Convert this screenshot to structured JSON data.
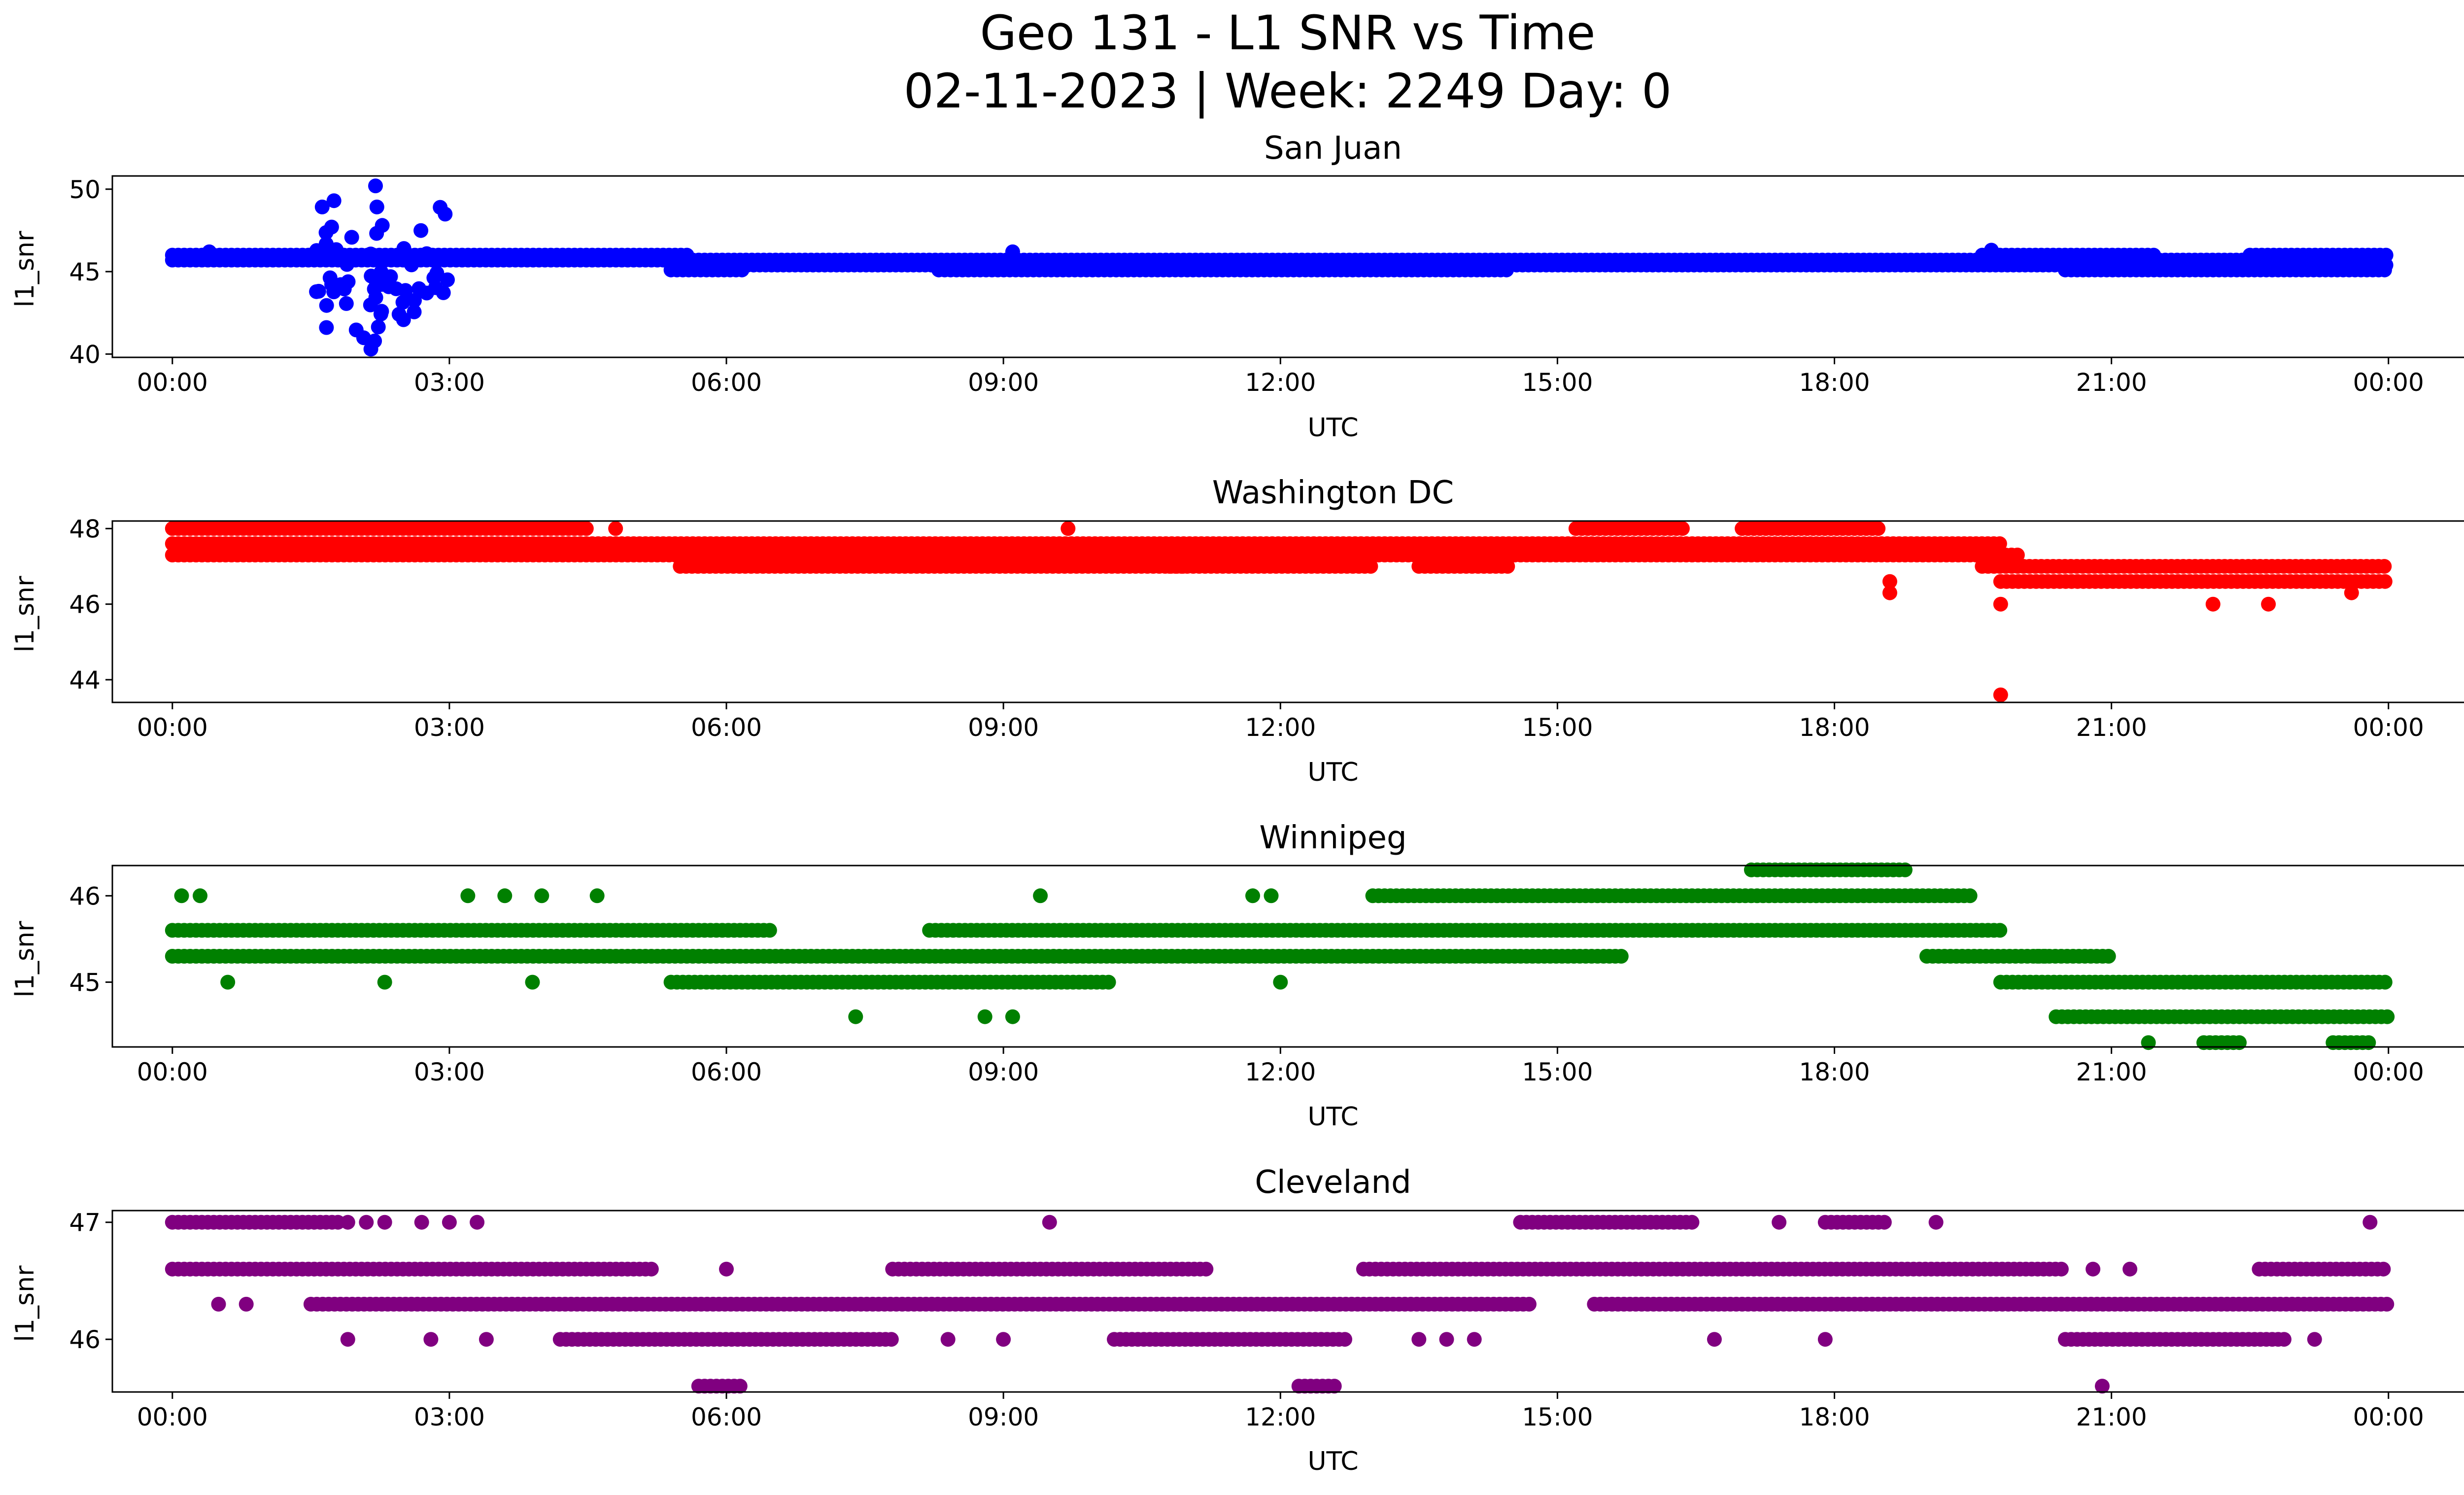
{
  "figure": {
    "title_line1": "Geo 131 - L1 SNR vs Time",
    "title_line2": "02-11-2023 | Week: 2249 Day: 0"
  },
  "chart_data": [
    {
      "type": "scatter",
      "title": "San Juan",
      "xlabel": "UTC",
      "ylabel": "l1_snr",
      "color": "#0000ff",
      "xlim_hours": [
        -0.65,
        25.8
      ],
      "ylim": [
        39.8,
        50.8
      ],
      "yticks": [
        40,
        45,
        50
      ],
      "xtick_labels": [
        "00:00",
        "03:00",
        "06:00",
        "09:00",
        "12:00",
        "15:00",
        "18:00",
        "21:00",
        "00:00"
      ],
      "xtick_hours": [
        0,
        3,
        6,
        9,
        12,
        15,
        18,
        21,
        24
      ],
      "series": [
        {
          "bands": [
            {
              "y": 46.0,
              "ranges": [
                [
                  0,
                  5.6
                ],
                [
                  19.6,
                  21.5
                ],
                [
                  22.5,
                  24
                ]
              ]
            },
            {
              "y": 45.7,
              "ranges": [
                [
                  0,
                  24
                ]
              ]
            },
            {
              "y": 45.4,
              "ranges": [
                [
                  5.4,
                  24
                ]
              ]
            },
            {
              "y": 45.1,
              "ranges": [
                [
                  5.4,
                  6.2
                ],
                [
                  8.3,
                  14.5
                ],
                [
                  20.5,
                  24
                ]
              ]
            }
          ],
          "burst": {
            "x_range": [
              1.55,
              3.0
            ],
            "y_range": [
              40.5,
              50.2
            ],
            "samples": 60
          },
          "extras": [
            [
              2.2,
              50.2
            ],
            [
              1.75,
              49.3
            ],
            [
              2.15,
              40.3
            ],
            [
              2.9,
              48.9
            ],
            [
              0.4,
              46.2
            ],
            [
              9.1,
              46.2
            ],
            [
              19.7,
              46.3
            ]
          ]
        }
      ]
    },
    {
      "type": "scatter",
      "title": "Washington DC",
      "xlabel": "UTC",
      "ylabel": "l1_snr",
      "color": "#ff0000",
      "xlim_hours": [
        -0.65,
        25.8
      ],
      "ylim": [
        43.4,
        48.2
      ],
      "yticks": [
        44,
        46,
        48
      ],
      "xtick_labels": [
        "00:00",
        "03:00",
        "06:00",
        "09:00",
        "12:00",
        "15:00",
        "18:00",
        "21:00",
        "00:00"
      ],
      "xtick_hours": [
        0,
        3,
        6,
        9,
        12,
        15,
        18,
        21,
        24
      ],
      "series": [
        {
          "bands": [
            {
              "y": 48.0,
              "ranges": [
                [
                  0,
                  4.5
                ],
                [
                  15.2,
                  16.4
                ],
                [
                  17.0,
                  18.5
                ]
              ]
            },
            {
              "y": 47.6,
              "ranges": [
                [
                  0,
                  19.8
                ]
              ]
            },
            {
              "y": 47.3,
              "ranges": [
                [
                  0,
                  20.0
                ]
              ]
            },
            {
              "y": 47.0,
              "ranges": [
                [
                  5.5,
                  11.0
                ],
                [
                  10.8,
                  13.0
                ],
                [
                  13.5,
                  14.5
                ],
                [
                  19.6,
                  24
                ]
              ]
            },
            {
              "y": 46.6,
              "ranges": [
                [
                  19.8,
                  24
                ]
              ]
            }
          ],
          "extras": [
            [
              4.8,
              48.0
            ],
            [
              9.7,
              48.0
            ],
            [
              18.6,
              46.6
            ],
            [
              18.6,
              46.3
            ],
            [
              19.8,
              46.0
            ],
            [
              22.1,
              46.0
            ],
            [
              22.7,
              46.0
            ],
            [
              23.6,
              46.3
            ],
            [
              19.8,
              43.6
            ]
          ]
        }
      ]
    },
    {
      "type": "scatter",
      "title": "Winnipeg",
      "xlabel": "UTC",
      "ylabel": "l1_snr",
      "color": "#008000",
      "xlim_hours": [
        -0.65,
        25.8
      ],
      "ylim": [
        44.25,
        46.35
      ],
      "yticks": [
        45,
        46
      ],
      "xtick_labels": [
        "00:00",
        "03:00",
        "06:00",
        "09:00",
        "12:00",
        "15:00",
        "18:00",
        "21:00",
        "00:00"
      ],
      "xtick_hours": [
        0,
        3,
        6,
        9,
        12,
        15,
        18,
        21,
        24
      ],
      "series": [
        {
          "bands": [
            {
              "y": 46.3,
              "ranges": [
                [
                  17.1,
                  18.8
                ]
              ]
            },
            {
              "y": 46.0,
              "ranges": [
                [
                  13.0,
                  19.5
                ]
              ]
            },
            {
              "y": 45.6,
              "ranges": [
                [
                  0,
                  6.5
                ],
                [
                  8.2,
                  19.8
                ]
              ]
            },
            {
              "y": 45.3,
              "ranges": [
                [
                  0,
                  15.7
                ],
                [
                  19.0,
                  20.3
                ],
                [
                  20.2,
                  21.0
                ]
              ]
            },
            {
              "y": 45.0,
              "ranges": [
                [
                  5.4,
                  10.2
                ],
                [
                  19.8,
                  24
                ]
              ]
            },
            {
              "y": 44.6,
              "ranges": [
                [
                  20.4,
                  24
                ]
              ]
            },
            {
              "y": 44.3,
              "ranges": [
                [
                  21.4,
                  21.4
                ],
                [
                  22.0,
                  22.4
                ],
                [
                  23.4,
                  23.8
                ]
              ]
            }
          ],
          "extras": [
            [
              0.1,
              46.0
            ],
            [
              0.3,
              46.0
            ],
            [
              3.2,
              46.0
            ],
            [
              3.6,
              46.0
            ],
            [
              4.0,
              46.0
            ],
            [
              4.6,
              46.0
            ],
            [
              9.4,
              46.0
            ],
            [
              11.7,
              46.0
            ],
            [
              11.9,
              46.0
            ],
            [
              0.6,
              45.0
            ],
            [
              2.3,
              45.0
            ],
            [
              3.9,
              45.0
            ],
            [
              12.0,
              45.0
            ],
            [
              7.4,
              44.6
            ],
            [
              8.8,
              44.6
            ],
            [
              9.1,
              44.6
            ]
          ]
        }
      ]
    },
    {
      "type": "scatter",
      "title": "Cleveland",
      "xlabel": "UTC",
      "ylabel": "l1_snr",
      "color": "#800080",
      "xlim_hours": [
        -0.65,
        25.8
      ],
      "ylim": [
        45.55,
        47.1
      ],
      "yticks": [
        46,
        47
      ],
      "xtick_labels": [
        "00:00",
        "03:00",
        "06:00",
        "09:00",
        "12:00",
        "15:00",
        "18:00",
        "21:00",
        "00:00"
      ],
      "xtick_hours": [
        0,
        3,
        6,
        9,
        12,
        15,
        18,
        21,
        24
      ],
      "series": [
        {
          "bands": [
            {
              "y": 47.0,
              "ranges": [
                [
                  0,
                  1.8
                ],
                [
                  14.6,
                  16.5
                ],
                [
                  17.9,
                  18.6
                ]
              ]
            },
            {
              "y": 46.6,
              "ranges": [
                [
                  0,
                  5.2
                ],
                [
                  7.8,
                  11.2
                ],
                [
                  12.9,
                  20.5
                ],
                [
                  22.6,
                  24
                ]
              ]
            },
            {
              "y": 46.3,
              "ranges": [
                [
                  1.5,
                  14.7
                ],
                [
                  15.4,
                  24
                ]
              ]
            },
            {
              "y": 46.0,
              "ranges": [
                [
                  4.2,
                  7.8
                ],
                [
                  10.2,
                  12.7
                ],
                [
                  20.5,
                  22.9
                ]
              ]
            },
            {
              "y": 45.6,
              "ranges": [
                [
                  5.7,
                  6.2
                ],
                [
                  12.2,
                  12.6
                ]
              ]
            }
          ],
          "extras": [
            [
              1.9,
              47.0
            ],
            [
              2.1,
              47.0
            ],
            [
              2.3,
              47.0
            ],
            [
              2.7,
              47.0
            ],
            [
              3.0,
              47.0
            ],
            [
              3.3,
              47.0
            ],
            [
              9.5,
              47.0
            ],
            [
              17.4,
              47.0
            ],
            [
              19.1,
              47.0
            ],
            [
              23.8,
              47.0
            ],
            [
              6.0,
              46.6
            ],
            [
              20.8,
              46.6
            ],
            [
              21.2,
              46.6
            ],
            [
              0.5,
              46.3
            ],
            [
              0.8,
              46.3
            ],
            [
              1.9,
              46.0
            ],
            [
              2.8,
              46.0
            ],
            [
              3.4,
              46.0
            ],
            [
              8.4,
              46.0
            ],
            [
              9.0,
              46.0
            ],
            [
              13.5,
              46.0
            ],
            [
              13.8,
              46.0
            ],
            [
              14.1,
              46.0
            ],
            [
              16.7,
              46.0
            ],
            [
              17.9,
              46.0
            ],
            [
              23.2,
              46.0
            ],
            [
              20.9,
              45.6
            ]
          ]
        }
      ]
    }
  ]
}
